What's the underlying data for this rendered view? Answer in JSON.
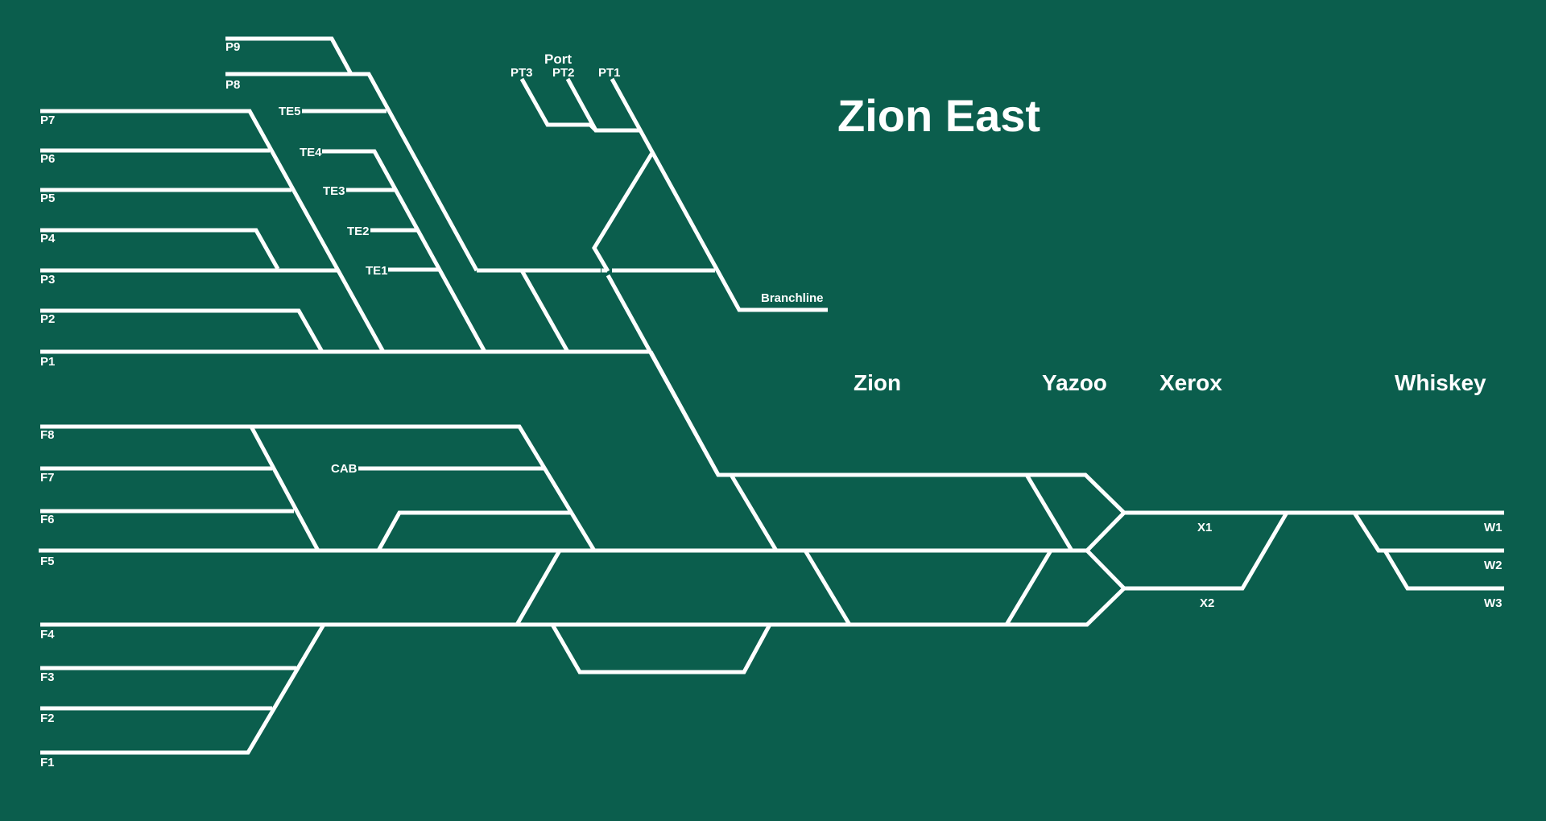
{
  "title": "Zion East",
  "areas": {
    "port": "Port",
    "zion": "Zion",
    "yazoo": "Yazoo",
    "xerox": "Xerox",
    "whiskey": "Whiskey"
  },
  "tracks": {
    "p9": "P9",
    "p8": "P8",
    "p7": "P7",
    "p6": "P6",
    "p5": "P5",
    "p4": "P4",
    "p3": "P3",
    "p2": "P2",
    "p1": "P1",
    "te5": "TE5",
    "te4": "TE4",
    "te3": "TE3",
    "te2": "TE2",
    "te1": "TE1",
    "pt3": "PT3",
    "pt2": "PT2",
    "pt1": "PT1",
    "branchline": "Branchline",
    "f8": "F8",
    "f7": "F7",
    "f6": "F6",
    "f5": "F5",
    "f4": "F4",
    "f3": "F3",
    "f2": "F2",
    "f1": "F1",
    "cab": "CAB",
    "x1": "X1",
    "x2": "X2",
    "w1": "W1",
    "w2": "W2",
    "w3": "W3"
  },
  "colors": {
    "background": "#0b5e4d",
    "track": "#ffffff"
  }
}
